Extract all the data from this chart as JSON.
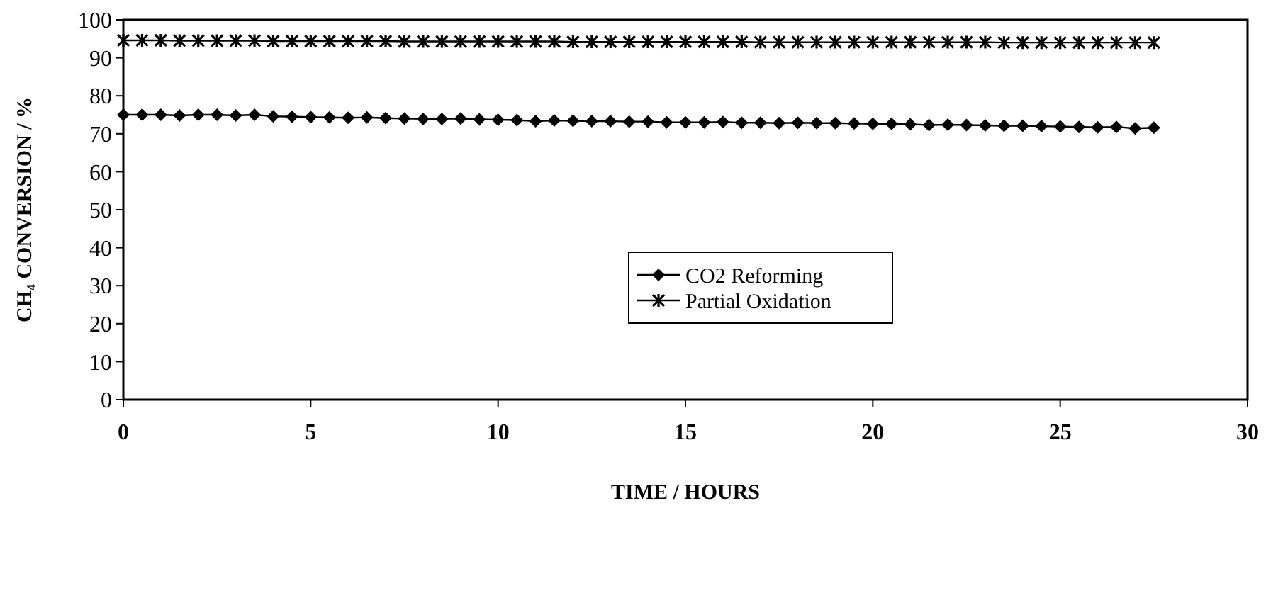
{
  "chart_data": {
    "type": "line",
    "xlabel": "TIME / HOURS",
    "ylabel": "CH₄ CONVERSION / %",
    "x": [
      0,
      0.5,
      1,
      1.5,
      2,
      2.5,
      3,
      3.5,
      4,
      4.5,
      5,
      5.5,
      6,
      6.5,
      7,
      7.5,
      8,
      8.5,
      9,
      9.5,
      10,
      10.5,
      11,
      11.5,
      12,
      12.5,
      13,
      13.5,
      14,
      14.5,
      15,
      15.5,
      16,
      16.5,
      17,
      17.5,
      18,
      18.5,
      19,
      19.5,
      20,
      20.5,
      21,
      21.5,
      22,
      22.5,
      23,
      23.5,
      24,
      24.5,
      25,
      25.5,
      26,
      26.5,
      27,
      27.5
    ],
    "series": [
      {
        "name": "CO2 Reforming",
        "color": "#000000",
        "marker": "diamond",
        "values": [
          75,
          75,
          75,
          74.8,
          75,
          75,
          74.8,
          75,
          74.6,
          74.5,
          74.4,
          74.3,
          74.2,
          74.3,
          74.1,
          74,
          73.9,
          73.9,
          74,
          73.8,
          73.7,
          73.6,
          73.3,
          73.5,
          73.4,
          73.3,
          73.3,
          73.2,
          73.2,
          73,
          73,
          73,
          73.1,
          72.9,
          72.9,
          72.8,
          72.9,
          72.8,
          72.8,
          72.7,
          72.6,
          72.6,
          72.5,
          72.3,
          72.4,
          72.3,
          72.2,
          72.1,
          72.1,
          72,
          71.9,
          71.8,
          71.7,
          71.8,
          71.4,
          71.6
        ]
      },
      {
        "name": "Partial Oxidation",
        "color": "#000000",
        "marker": "cross",
        "values": [
          94.6,
          94.6,
          94.6,
          94.5,
          94.5,
          94.5,
          94.5,
          94.5,
          94.4,
          94.4,
          94.4,
          94.4,
          94.4,
          94.4,
          94.4,
          94.3,
          94.3,
          94.3,
          94.3,
          94.3,
          94.3,
          94.3,
          94.3,
          94.3,
          94.2,
          94.2,
          94.2,
          94.2,
          94.2,
          94.2,
          94.2,
          94.2,
          94.2,
          94.2,
          94.1,
          94.1,
          94.1,
          94.1,
          94.1,
          94.1,
          94.1,
          94.1,
          94.1,
          94.1,
          94.1,
          94.1,
          94.1,
          94.0,
          94.0,
          94.0,
          94.0,
          94.0,
          94.0,
          94.0,
          94.0,
          94.0
        ]
      }
    ],
    "xlim": [
      0,
      30
    ],
    "xticks": [
      0,
      5,
      10,
      15,
      20,
      25,
      30
    ],
    "ylim": [
      0,
      100
    ],
    "yticks": [
      0,
      10,
      20,
      30,
      40,
      50,
      60,
      70,
      80,
      90,
      100
    ],
    "grid": false,
    "legend": "center",
    "line_style": "solid"
  }
}
